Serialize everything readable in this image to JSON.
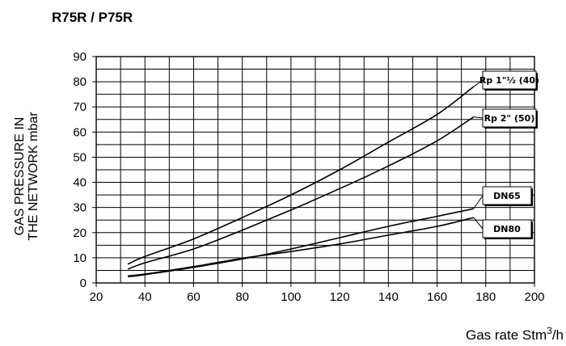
{
  "chart_data": {
    "type": "line",
    "title": "R75R / P75R",
    "ylabel_line1": "GAS PRESSURE IN",
    "ylabel_line2": "THE NETWORK mbar",
    "xlabel_main": "Gas rate Stm",
    "xlabel_sup": "3",
    "xlabel_tail": "/h",
    "xlim": [
      20,
      200
    ],
    "ylim": [
      0,
      90
    ],
    "xticks": [
      20,
      40,
      60,
      80,
      100,
      120,
      140,
      160,
      180,
      200
    ],
    "yticks": [
      0,
      10,
      20,
      30,
      40,
      50,
      60,
      70,
      80,
      90
    ],
    "grid": true,
    "series": [
      {
        "name": "Rp 1\"½ (40)",
        "x": [
          33,
          40,
          60,
          80,
          100,
          120,
          140,
          160,
          175
        ],
        "y": [
          7.5,
          10.5,
          17.5,
          26,
          35,
          45,
          56,
          67,
          78
        ]
      },
      {
        "name": "Rp 2\" (50)",
        "x": [
          33,
          40,
          60,
          80,
          100,
          120,
          140,
          160,
          175
        ],
        "y": [
          5.5,
          8,
          13.5,
          21,
          29,
          37.5,
          46.5,
          56.5,
          66
        ]
      },
      {
        "name": "DN65",
        "x": [
          33,
          40,
          60,
          80,
          100,
          120,
          140,
          160,
          175
        ],
        "y": [
          2.5,
          3.3,
          6.2,
          9.5,
          13.5,
          18,
          22.5,
          26.5,
          29.5
        ]
      },
      {
        "name": "DN80",
        "x": [
          33,
          40,
          60,
          80,
          100,
          120,
          140,
          160,
          175
        ],
        "y": [
          2.8,
          3.5,
          6.5,
          9.8,
          12.5,
          15.5,
          19,
          22.5,
          26
        ]
      }
    ]
  }
}
